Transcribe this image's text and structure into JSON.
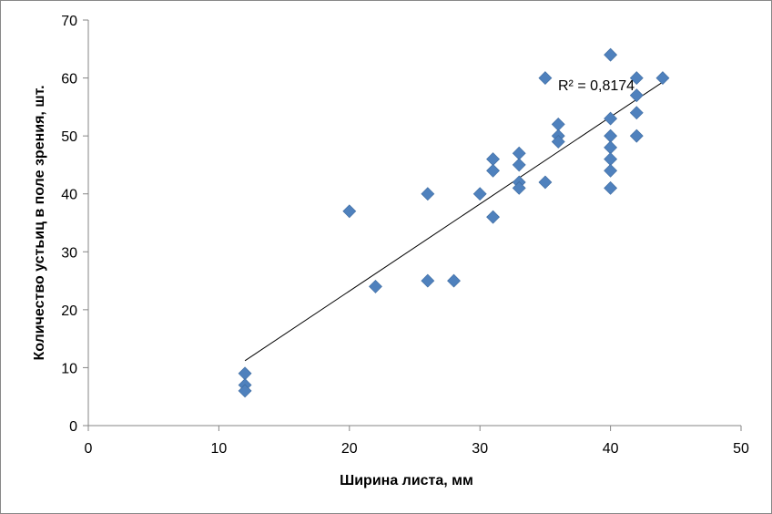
{
  "chart_data": {
    "type": "scatter",
    "xlabel": "Ширина листа, мм",
    "ylabel": "Количество устьиц в поле зрения, шт.",
    "xlim": [
      0,
      50
    ],
    "ylim": [
      0,
      70
    ],
    "x_ticks": [
      "0",
      "10",
      "20",
      "30",
      "40",
      "50"
    ],
    "y_ticks": [
      "0",
      "10",
      "20",
      "30",
      "40",
      "50",
      "60",
      "70"
    ],
    "grid": false,
    "legend": "none",
    "marker": "diamond",
    "marker_color": "#4F81BD",
    "points": [
      {
        "x": 12,
        "y": 9
      },
      {
        "x": 12,
        "y": 7
      },
      {
        "x": 12,
        "y": 6
      },
      {
        "x": 20,
        "y": 37
      },
      {
        "x": 22,
        "y": 24
      },
      {
        "x": 26,
        "y": 40
      },
      {
        "x": 26,
        "y": 25
      },
      {
        "x": 28,
        "y": 25
      },
      {
        "x": 30,
        "y": 40
      },
      {
        "x": 31,
        "y": 46
      },
      {
        "x": 31,
        "y": 44
      },
      {
        "x": 31,
        "y": 36
      },
      {
        "x": 33,
        "y": 47
      },
      {
        "x": 33,
        "y": 45
      },
      {
        "x": 33,
        "y": 42
      },
      {
        "x": 33,
        "y": 41
      },
      {
        "x": 35,
        "y": 60
      },
      {
        "x": 35,
        "y": 42
      },
      {
        "x": 36,
        "y": 52
      },
      {
        "x": 36,
        "y": 50
      },
      {
        "x": 36,
        "y": 49
      },
      {
        "x": 40,
        "y": 64
      },
      {
        "x": 40,
        "y": 53
      },
      {
        "x": 40,
        "y": 50
      },
      {
        "x": 40,
        "y": 48
      },
      {
        "x": 40,
        "y": 46
      },
      {
        "x": 40,
        "y": 44
      },
      {
        "x": 40,
        "y": 41
      },
      {
        "x": 42,
        "y": 60
      },
      {
        "x": 42,
        "y": 57
      },
      {
        "x": 42,
        "y": 54
      },
      {
        "x": 42,
        "y": 50
      },
      {
        "x": 44,
        "y": 60
      }
    ],
    "trendline": {
      "type": "linear",
      "from": {
        "x": 12,
        "y": 11.2
      },
      "to": {
        "x": 44,
        "y": 59.3
      },
      "label": "R² = 0,8174"
    }
  }
}
